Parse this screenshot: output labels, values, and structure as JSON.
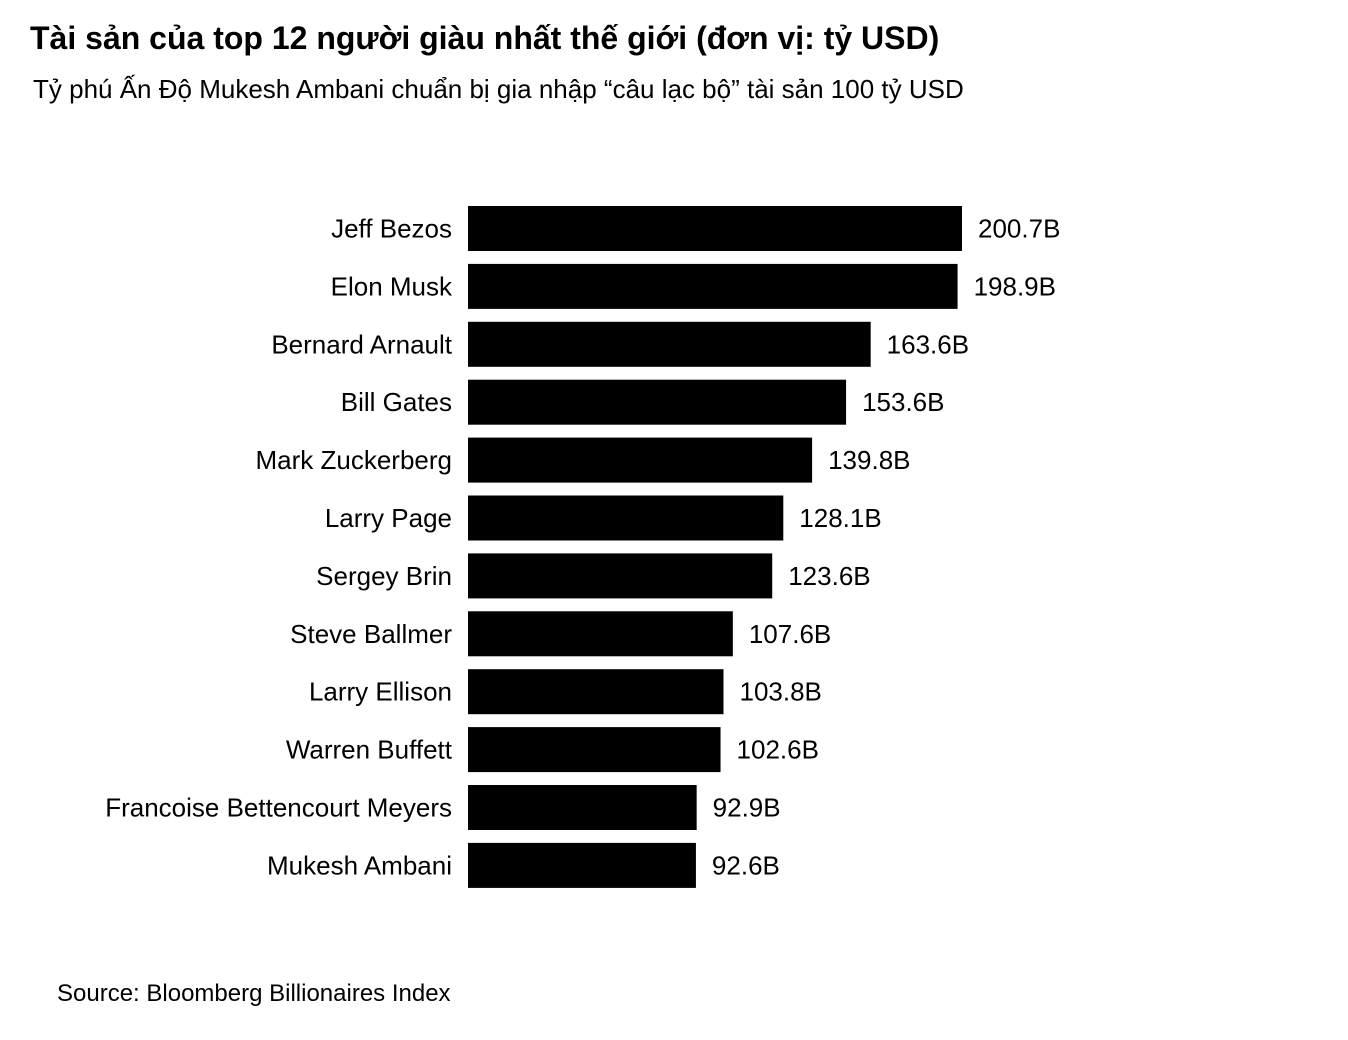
{
  "chart_data": {
    "type": "bar",
    "orientation": "horizontal",
    "title": "Tài sản của top 12 người giàu nhất thế giới (đơn vị: tỷ USD)",
    "subtitle": "Tỷ phú Ấn Độ Mukesh Ambani chuẩn bị gia nhập “câu lạc bộ” tài sản 100 tỷ USD",
    "categories": [
      "Jeff Bezos",
      "Elon Musk",
      "Bernard Arnault",
      "Bill Gates",
      "Mark Zuckerberg",
      "Larry Page",
      "Sergey Brin",
      "Steve Ballmer",
      "Larry Ellison",
      "Warren Buffett",
      "Francoise Bettencourt Meyers",
      "Mukesh Ambani"
    ],
    "values": [
      200.7,
      198.9,
      163.6,
      153.6,
      139.8,
      128.1,
      123.6,
      107.6,
      103.8,
      102.6,
      92.9,
      92.6
    ],
    "value_labels": [
      "200.7B",
      "198.9B",
      "163.6B",
      "153.6B",
      "139.8B",
      "128.1B",
      "123.6B",
      "107.6B",
      "103.8B",
      "102.6B",
      "92.9B",
      "92.6B"
    ],
    "xlim": [
      0,
      200.7
    ],
    "grid": false,
    "legend": "none",
    "bar_color": "#000000",
    "source": "Source: Bloomberg Billionaires Index"
  }
}
